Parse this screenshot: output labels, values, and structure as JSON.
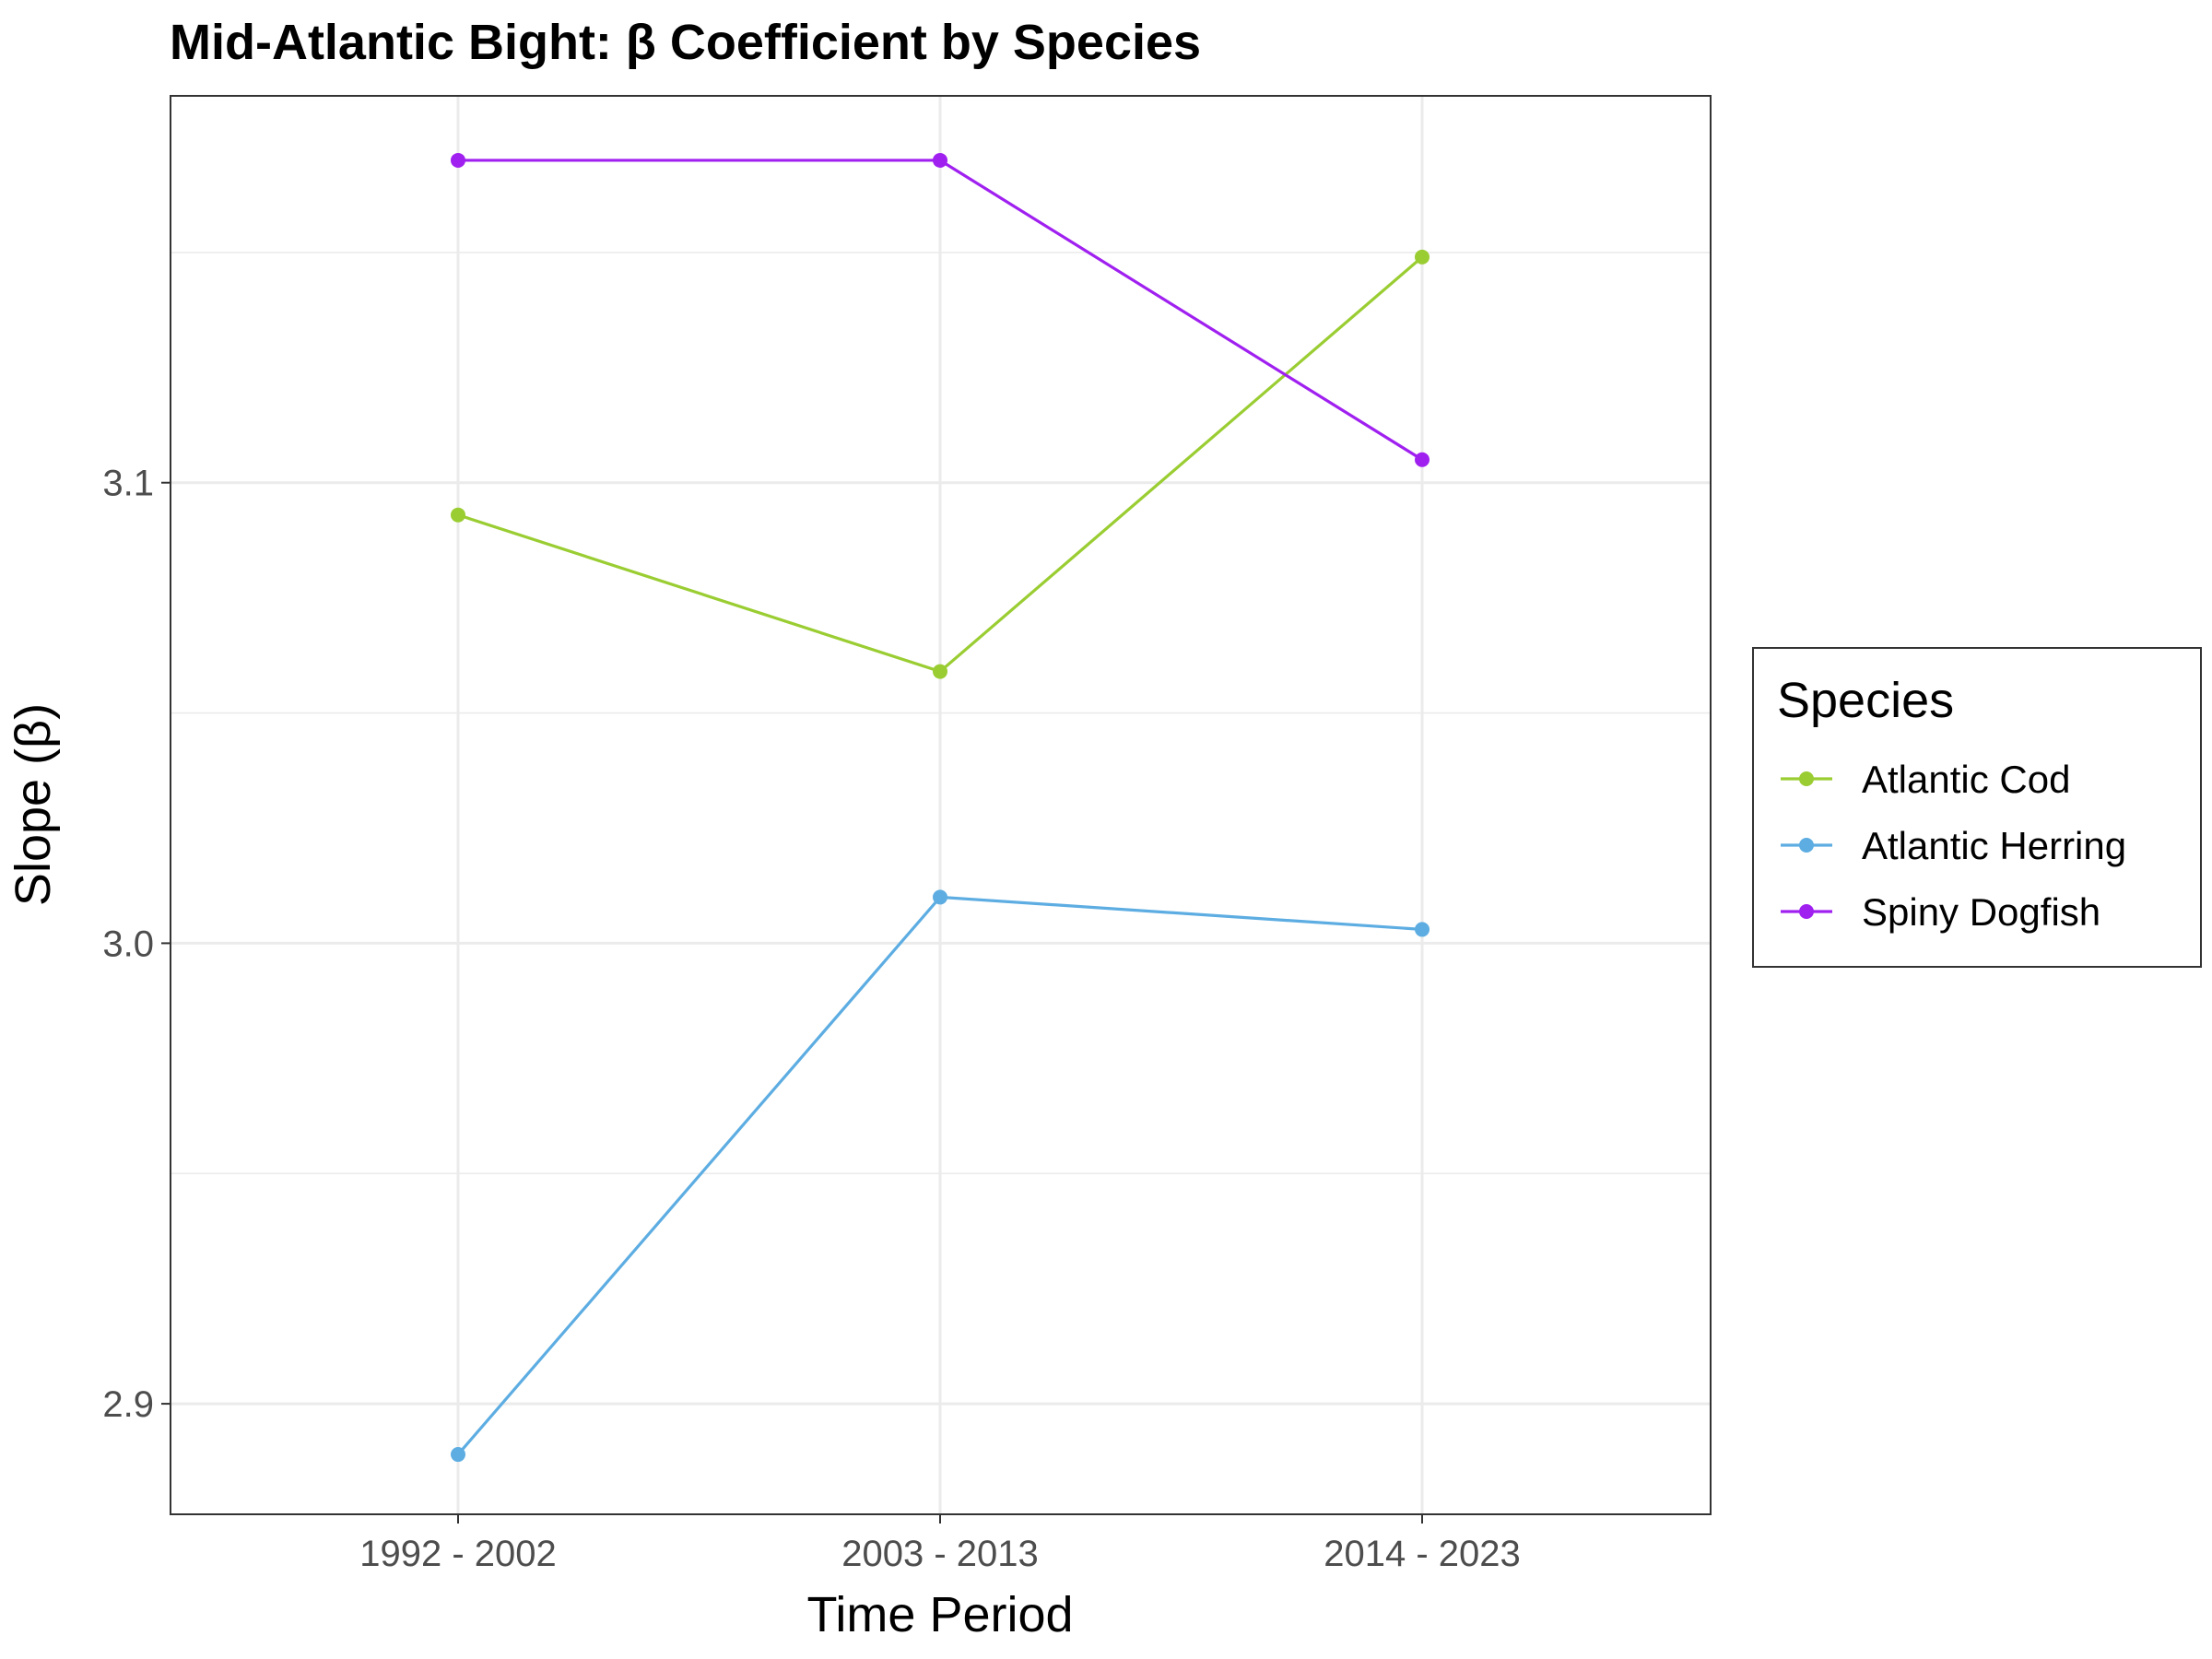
{
  "chart_data": {
    "type": "line",
    "title": "Mid-Atlantic Bight: β Coefficient by Species",
    "xlabel": "Time Period",
    "ylabel": "Slope (β)",
    "categories": [
      "1992 - 2002",
      "2003 - 2013",
      "2014 - 2023"
    ],
    "ylim": [
      2.876,
      3.184
    ],
    "yticks": [
      2.9,
      3.0,
      3.1
    ],
    "ytick_labels": [
      "2.9",
      "3.0",
      "3.1"
    ],
    "grid": true,
    "legend": {
      "title": "Species",
      "position": "right"
    },
    "series": [
      {
        "name": "Atlantic Cod",
        "color": "#9acd32",
        "values": [
          3.093,
          3.059,
          3.149
        ]
      },
      {
        "name": "Atlantic Herring",
        "color": "#5dade2",
        "values": [
          2.889,
          3.01,
          3.003
        ]
      },
      {
        "name": "Spiny Dogfish",
        "color": "#a020f0",
        "values": [
          3.17,
          3.17,
          3.105
        ]
      }
    ]
  }
}
